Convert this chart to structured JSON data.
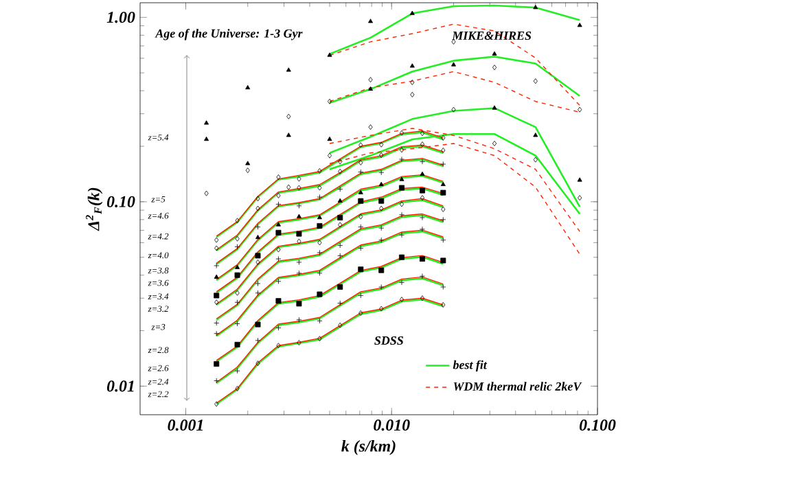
{
  "chart_data": {
    "type": "line",
    "log": "xy",
    "xlim": [
      0.0006,
      0.1
    ],
    "ylim": [
      0.007,
      1.2
    ],
    "xticks": [
      {
        "value": 0.001,
        "label": "0.001"
      },
      {
        "value": 0.01,
        "label": "0.010"
      },
      {
        "value": 0.1,
        "label": "0.100"
      }
    ],
    "yticks": [
      {
        "value": 0.01,
        "label": "0.01"
      },
      {
        "value": 0.1,
        "label": "0.10"
      },
      {
        "value": 1,
        "label": "1.00"
      }
    ],
    "xlabel": "k (s/km)",
    "ylabel": "Δ$^{2}$$_{F}$(k)",
    "legend": "bottom right",
    "annotations": [
      "Age of the Universe: 1-3 Gyr",
      "MIKE&HIRES",
      "SDSS",
      "z=5.4",
      "z=5",
      "z=4.6",
      "z=4.2",
      "z=4.0",
      "z=3.8",
      "z=3.6",
      "z=3.4",
      "z=3.2",
      "z=3",
      "z=2.8",
      "z=2.6",
      "z=2.4",
      "z=2.2"
    ],
    "series": [
      {
        "name": "best fit",
        "type": "line",
        "color": "#22ee22",
        "line_style": "solid",
        "x": [
          0.005,
          0.0079,
          0.0126,
          0.02,
          0.0316,
          0.05,
          0.082
        ],
        "values": [
          0.633,
          0.776,
          1.05,
          1.15,
          1.16,
          1.13,
          0.967
        ]
      },
      {
        "type": "line",
        "color": "#22ee22",
        "line_style": "solid",
        "x": [
          0.005,
          0.0079,
          0.0126,
          0.02,
          0.0316,
          0.05,
          0.082
        ],
        "values": [
          0.344,
          0.408,
          0.508,
          0.582,
          0.612,
          0.562,
          0.375
        ]
      },
      {
        "type": "line",
        "color": "#22ee22",
        "line_style": "solid",
        "x": [
          0.005,
          0.0079,
          0.0126,
          0.02,
          0.0316,
          0.05,
          0.082
        ],
        "values": [
          0.184,
          0.225,
          0.281,
          0.311,
          0.322,
          0.254,
          0.094
        ]
      },
      {
        "type": "line",
        "color": "#22ee22",
        "line_style": "solid",
        "x": [
          0.005,
          0.0079,
          0.0126,
          0.02,
          0.0316,
          0.05,
          0.082
        ],
        "values": [
          0.15,
          0.178,
          0.218,
          0.233,
          0.233,
          0.178,
          0.086
        ]
      },
      {
        "type": "line",
        "color": "#22ee22",
        "line_style": "solid",
        "x": [
          0.00141,
          0.00178,
          0.00224,
          0.00282,
          0.00355,
          0.00447,
          0.00562,
          0.00708,
          0.00891,
          0.0112,
          0.0141,
          0.0178
        ],
        "values": [
          0.0644,
          0.0774,
          0.106,
          0.132,
          0.137,
          0.144,
          0.169,
          0.198,
          0.208,
          0.232,
          0.238,
          0.218
        ]
      },
      {
        "type": "line",
        "color": "#22ee22",
        "line_style": "solid",
        "x": [
          0.00141,
          0.00178,
          0.00224,
          0.00282,
          0.00355,
          0.00447,
          0.00562,
          0.00708,
          0.00891,
          0.0112,
          0.0141,
          0.0178
        ],
        "values": [
          0.0543,
          0.0653,
          0.0895,
          0.112,
          0.116,
          0.122,
          0.142,
          0.167,
          0.175,
          0.196,
          0.2,
          0.184
        ]
      },
      {
        "type": "line",
        "color": "#22ee22",
        "line_style": "solid",
        "x": [
          0.00141,
          0.00178,
          0.00224,
          0.00282,
          0.00355,
          0.00447,
          0.00562,
          0.00708,
          0.00891,
          0.0112,
          0.0141,
          0.0178
        ],
        "values": [
          0.0459,
          0.0552,
          0.0756,
          0.0944,
          0.0979,
          0.103,
          0.12,
          0.141,
          0.148,
          0.166,
          0.169,
          0.156
        ]
      },
      {
        "type": "line",
        "color": "#22ee22",
        "line_style": "solid",
        "x": [
          0.00141,
          0.00178,
          0.00224,
          0.00282,
          0.00355,
          0.00447,
          0.00562,
          0.00708,
          0.00891,
          0.0112,
          0.0141,
          0.0178
        ],
        "values": [
          0.0375,
          0.0451,
          0.0618,
          0.0771,
          0.08,
          0.084,
          0.098,
          0.115,
          0.121,
          0.135,
          0.138,
          0.127
        ]
      },
      {
        "type": "line",
        "color": "#22ee22",
        "line_style": "solid",
        "x": [
          0.00141,
          0.00178,
          0.00224,
          0.00282,
          0.00355,
          0.00447,
          0.00562,
          0.00708,
          0.00891,
          0.0112,
          0.0141,
          0.0178
        ],
        "values": [
          0.0321,
          0.0386,
          0.0529,
          0.066,
          0.0685,
          0.0719,
          0.0842,
          0.0987,
          0.104,
          0.116,
          0.118,
          0.109
        ]
      },
      {
        "type": "line",
        "color": "#22ee22",
        "line_style": "solid",
        "x": [
          0.00141,
          0.00178,
          0.00224,
          0.00282,
          0.00355,
          0.00447,
          0.00562,
          0.00708,
          0.00891,
          0.0112,
          0.0141,
          0.0178
        ],
        "values": [
          0.0276,
          0.0332,
          0.0455,
          0.0567,
          0.0589,
          0.0618,
          0.0724,
          0.0849,
          0.0891,
          0.0995,
          0.102,
          0.0935
        ]
      },
      {
        "type": "line",
        "color": "#22ee22",
        "line_style": "solid",
        "x": [
          0.00141,
          0.00178,
          0.00224,
          0.00282,
          0.00355,
          0.00447,
          0.00562,
          0.00708,
          0.00891,
          0.0112,
          0.0141,
          0.0178
        ],
        "values": [
          0.0229,
          0.0275,
          0.0377,
          0.0471,
          0.0488,
          0.0513,
          0.0601,
          0.0704,
          0.0739,
          0.0826,
          0.0845,
          0.0776
        ]
      },
      {
        "type": "line",
        "color": "#22ee22",
        "line_style": "solid",
        "x": [
          0.00141,
          0.00178,
          0.00224,
          0.00282,
          0.00355,
          0.00447,
          0.00562,
          0.00708,
          0.00891,
          0.0112,
          0.0141,
          0.0178
        ],
        "values": [
          0.0187,
          0.0225,
          0.0308,
          0.0384,
          0.0399,
          0.0419,
          0.0491,
          0.0575,
          0.0604,
          0.0674,
          0.069,
          0.0634
        ]
      },
      {
        "type": "line",
        "color": "#22ee22",
        "line_style": "solid",
        "x": [
          0.00141,
          0.00178,
          0.00224,
          0.00282,
          0.00355,
          0.00447,
          0.00562,
          0.00708,
          0.00891,
          0.0112,
          0.0141,
          0.0178
        ],
        "values": [
          0.0136,
          0.0163,
          0.0224,
          0.028,
          0.029,
          0.0305,
          0.0357,
          0.0418,
          0.0439,
          0.049,
          0.0502,
          0.0461
        ]
      },
      {
        "type": "line",
        "color": "#22ee22",
        "line_style": "solid",
        "x": [
          0.00141,
          0.00178,
          0.00224,
          0.00282,
          0.00355,
          0.00447,
          0.00562,
          0.00708,
          0.00891,
          0.0112,
          0.0141,
          0.0178
        ],
        "values": [
          0.0104,
          0.0125,
          0.0171,
          0.0214,
          0.0222,
          0.0233,
          0.0273,
          0.032,
          0.0336,
          0.0375,
          0.0384,
          0.0352
        ]
      },
      {
        "type": "line",
        "color": "#22ee22",
        "line_style": "solid",
        "x": [
          0.00141,
          0.00178,
          0.00224,
          0.00282,
          0.00355,
          0.00447,
          0.00562,
          0.00708,
          0.00891,
          0.0112,
          0.0141,
          0.0178
        ],
        "values": [
          0.008,
          0.0096,
          0.0132,
          0.0164,
          0.0171,
          0.0179,
          0.021,
          0.0246,
          0.0258,
          0.0288,
          0.0295,
          0.0271
        ]
      },
      {
        "name": "WDM thermal relic 2keV",
        "type": "line",
        "color": "#ff2200",
        "line_style": "dashed",
        "x": [
          0.005,
          0.0079,
          0.0126,
          0.02,
          0.0316,
          0.05,
          0.082
        ],
        "values": [
          0.622,
          0.737,
          0.816,
          0.919,
          0.844,
          0.602,
          0.333
        ]
      },
      {
        "type": "line",
        "color": "#ff2200",
        "line_style": "dashed",
        "x": [
          0.005,
          0.0079,
          0.0126,
          0.02,
          0.0316,
          0.05,
          0.082
        ],
        "values": [
          0.35,
          0.415,
          0.451,
          0.508,
          0.444,
          0.35,
          0.306
        ]
      },
      {
        "type": "line",
        "color": "#ff2200",
        "line_style": "dashed",
        "x": [
          0.005,
          0.0079,
          0.0126,
          0.02,
          0.0316,
          0.05,
          0.082
        ],
        "values": [
          0.207,
          0.229,
          0.25,
          0.229,
          0.194,
          0.15,
          0.069
        ]
      },
      {
        "type": "line",
        "color": "#ff2200",
        "line_style": "dashed",
        "x": [
          0.005,
          0.0079,
          0.0126,
          0.02,
          0.0316,
          0.05,
          0.082
        ],
        "values": [
          0.161,
          0.184,
          0.194,
          0.207,
          0.178,
          0.12,
          0.052
        ]
      },
      {
        "type": "line",
        "color": "#ff2200",
        "line_style": "solid",
        "x": [
          0.00141,
          0.00178,
          0.00224,
          0.00282,
          0.00355,
          0.00447,
          0.00562,
          0.00708,
          0.00891,
          0.0112,
          0.0141,
          0.0178
        ],
        "values": [
          0.0651,
          0.0781,
          0.107,
          0.133,
          0.139,
          0.146,
          0.171,
          0.2,
          0.21,
          0.235,
          0.242,
          0.222
        ]
      },
      {
        "type": "line",
        "color": "#ff2200",
        "line_style": "solid",
        "x": [
          0.00141,
          0.00178,
          0.00224,
          0.00282,
          0.00355,
          0.00447,
          0.00562,
          0.00708,
          0.00891,
          0.0112,
          0.0141,
          0.0178
        ],
        "values": [
          0.0549,
          0.066,
          0.0905,
          0.113,
          0.118,
          0.124,
          0.144,
          0.169,
          0.178,
          0.199,
          0.203,
          0.187
        ]
      },
      {
        "type": "line",
        "color": "#ff2200",
        "line_style": "solid",
        "x": [
          0.00141,
          0.00178,
          0.00224,
          0.00282,
          0.00355,
          0.00447,
          0.00562,
          0.00708,
          0.00891,
          0.0112,
          0.0141,
          0.0178
        ],
        "values": [
          0.0464,
          0.0558,
          0.0764,
          0.0954,
          0.099,
          0.104,
          0.122,
          0.143,
          0.15,
          0.168,
          0.172,
          0.158
        ]
      },
      {
        "type": "line",
        "color": "#ff2200",
        "line_style": "solid",
        "x": [
          0.00141,
          0.00178,
          0.00224,
          0.00282,
          0.00355,
          0.00447,
          0.00562,
          0.00708,
          0.00891,
          0.0112,
          0.0141,
          0.0178
        ],
        "values": [
          0.0379,
          0.0456,
          0.0625,
          0.078,
          0.081,
          0.085,
          0.0995,
          0.117,
          0.123,
          0.137,
          0.14,
          0.129
        ]
      },
      {
        "type": "line",
        "color": "#ff2200",
        "line_style": "solid",
        "x": [
          0.00141,
          0.00178,
          0.00224,
          0.00282,
          0.00355,
          0.00447,
          0.00562,
          0.00708,
          0.00891,
          0.0112,
          0.0141,
          0.0178
        ],
        "values": [
          0.0325,
          0.039,
          0.0535,
          0.0668,
          0.0693,
          0.0728,
          0.0853,
          0.1,
          0.106,
          0.118,
          0.12,
          0.111
        ]
      },
      {
        "type": "line",
        "color": "#ff2200",
        "line_style": "solid",
        "x": [
          0.00141,
          0.00178,
          0.00224,
          0.00282,
          0.00355,
          0.00447,
          0.00562,
          0.00708,
          0.00891,
          0.0112,
          0.0141,
          0.0178
        ],
        "values": [
          0.0279,
          0.0336,
          0.046,
          0.0574,
          0.0596,
          0.0626,
          0.0734,
          0.0861,
          0.0904,
          0.101,
          0.104,
          0.095
        ]
      },
      {
        "type": "line",
        "color": "#ff2200",
        "line_style": "solid",
        "x": [
          0.00141,
          0.00178,
          0.00224,
          0.00282,
          0.00355,
          0.00447,
          0.00562,
          0.00708,
          0.00891,
          0.0112,
          0.0141,
          0.0178
        ],
        "values": [
          0.0232,
          0.0278,
          0.0381,
          0.0477,
          0.0494,
          0.052,
          0.0609,
          0.0714,
          0.075,
          0.0839,
          0.0859,
          0.0789
        ]
      },
      {
        "type": "line",
        "color": "#ff2200",
        "line_style": "solid",
        "x": [
          0.00141,
          0.00178,
          0.00224,
          0.00282,
          0.00355,
          0.00447,
          0.00562,
          0.00708,
          0.00891,
          0.0112,
          0.0141,
          0.0178
        ],
        "values": [
          0.0189,
          0.0228,
          0.0312,
          0.0389,
          0.0404,
          0.0425,
          0.0498,
          0.0583,
          0.0613,
          0.0685,
          0.0702,
          0.0645
        ]
      },
      {
        "type": "line",
        "color": "#ff2200",
        "line_style": "solid",
        "x": [
          0.00141,
          0.00178,
          0.00224,
          0.00282,
          0.00355,
          0.00447,
          0.00562,
          0.00708,
          0.00891,
          0.0112,
          0.0141,
          0.0178
        ],
        "values": [
          0.0138,
          0.0165,
          0.0227,
          0.0284,
          0.0294,
          0.031,
          0.0362,
          0.0424,
          0.0446,
          0.0498,
          0.0511,
          0.0469
        ]
      },
      {
        "type": "line",
        "color": "#ff2200",
        "line_style": "solid",
        "x": [
          0.00141,
          0.00178,
          0.00224,
          0.00282,
          0.00355,
          0.00447,
          0.00562,
          0.00708,
          0.00891,
          0.0112,
          0.0141,
          0.0178
        ],
        "values": [
          0.0105,
          0.0127,
          0.0173,
          0.0217,
          0.0225,
          0.0236,
          0.0277,
          0.0325,
          0.0341,
          0.0381,
          0.0391,
          0.0358
        ]
      },
      {
        "type": "line",
        "color": "#ff2200",
        "line_style": "solid",
        "x": [
          0.00141,
          0.00178,
          0.00224,
          0.00282,
          0.00355,
          0.00447,
          0.00562,
          0.00708,
          0.00891,
          0.0112,
          0.0141,
          0.0178
        ],
        "values": [
          0.0081,
          0.0097,
          0.0134,
          0.0166,
          0.0173,
          0.0182,
          0.0213,
          0.025,
          0.0262,
          0.0293,
          0.03,
          0.0276
        ]
      },
      {
        "type": "scatter",
        "color": "#000000",
        "marker": "triangle",
        "x": [
          0.00126,
          0.002,
          0.00316,
          0.005,
          0.0079,
          0.0126,
          0.02,
          0.0316,
          0.05,
          0.082
        ],
        "values": [
          0.267,
          0.415,
          0.517,
          0.623,
          0.95,
          1.05,
          null,
          0.633,
          1.13,
          0.904
        ]
      },
      {
        "type": "scatter",
        "color": "#000000",
        "marker": "diamond",
        "x": [
          0.00126,
          0.002,
          0.00316,
          0.005,
          0.0079,
          0.0126,
          0.02,
          0.0316,
          0.05,
          0.082
        ],
        "values": [
          0.111,
          0.148,
          0.29,
          0.35,
          0.459,
          0.444,
          0.737,
          0.535,
          0.451,
          0.316
        ]
      },
      {
        "type": "scatter",
        "color": "#000000",
        "marker": "triangle",
        "x": [
          0.00126,
          0.002,
          0.00316,
          0.005,
          0.0079,
          0.0126,
          0.02,
          0.0316,
          0.05,
          0.082
        ],
        "values": [
          0.218,
          0.161,
          0.229,
          0.218,
          0.408,
          0.544,
          0.553,
          0.322,
          0.229,
          0.131
        ]
      },
      {
        "type": "scatter",
        "color": "#000000",
        "marker": "diamond",
        "x": [
          0.00316,
          0.005,
          0.0079,
          0.0126,
          0.02,
          0.0316,
          0.05,
          0.082
        ],
        "values": [
          0.12,
          0.178,
          0.254,
          0.381,
          0.316,
          0.207,
          0.169,
          0.105
        ]
      },
      {
        "type": "scatter",
        "color": "#000000",
        "marker": "diamond",
        "x": [
          0.00141,
          0.00178,
          0.00224,
          0.00282,
          0.00355,
          0.00447,
          0.00562,
          0.00708,
          0.00891,
          0.0112,
          0.0141,
          0.0178
        ],
        "values": [
          0.062,
          0.079,
          0.104,
          0.136,
          0.133,
          0.147,
          0.165,
          0.203,
          0.204,
          0.236,
          0.235,
          0.222
        ]
      },
      {
        "type": "scatter",
        "color": "#000000",
        "marker": "diamond",
        "x": [
          0.00141,
          0.00178,
          0.00224,
          0.00282,
          0.00355,
          0.00447,
          0.00562,
          0.00708,
          0.00891,
          0.0112,
          0.0141,
          0.0178
        ],
        "values": [
          0.056,
          0.063,
          0.092,
          0.108,
          0.119,
          0.119,
          0.146,
          0.163,
          0.179,
          0.191,
          0.205,
          0.19
        ]
      },
      {
        "type": "scatter",
        "color": "#000000",
        "marker": "cross",
        "x": [
          0.00141,
          0.00178,
          0.00224,
          0.00282,
          0.00355,
          0.00447,
          0.00562,
          0.00708,
          0.00891,
          0.0112,
          0.0141,
          0.0178
        ],
        "values": [
          0.045,
          0.057,
          0.073,
          0.097,
          0.095,
          0.106,
          0.117,
          0.145,
          0.144,
          0.17,
          0.165,
          0.16
        ]
      },
      {
        "type": "scatter",
        "color": "#000000",
        "marker": "triangle",
        "x": [
          0.00141,
          0.00178,
          0.00224,
          0.00282,
          0.00355,
          0.00447,
          0.00562,
          0.00708,
          0.00891,
          0.0112,
          0.0141,
          0.0178
        ],
        "values": [
          0.039,
          0.044,
          0.064,
          0.075,
          0.083,
          0.082,
          0.101,
          0.112,
          0.124,
          0.132,
          0.141,
          0.124
        ]
      },
      {
        "type": "scatter",
        "color": "#000000",
        "marker": "square",
        "x": [
          0.00141,
          0.00178,
          0.00224,
          0.00282,
          0.00355,
          0.00447,
          0.00562,
          0.00708,
          0.00891,
          0.0112,
          0.0141,
          0.0178
        ],
        "values": [
          0.031,
          0.04,
          0.051,
          0.068,
          0.067,
          0.074,
          0.082,
          0.101,
          0.101,
          0.119,
          0.115,
          0.112
        ]
      },
      {
        "type": "scatter",
        "color": "#000000",
        "marker": "diamond",
        "x": [
          0.00141,
          0.00178,
          0.00224,
          0.00282,
          0.00355,
          0.00447,
          0.00562,
          0.00708,
          0.00891,
          0.0112,
          0.0141,
          0.0178
        ],
        "values": [
          0.0285,
          0.032,
          0.047,
          0.055,
          0.061,
          0.06,
          0.075,
          0.083,
          0.092,
          0.097,
          0.105,
          0.091
        ]
      },
      {
        "type": "scatter",
        "color": "#000000",
        "marker": "cross",
        "x": [
          0.00141,
          0.00178,
          0.00224,
          0.00282,
          0.00355,
          0.00447,
          0.00562,
          0.00708,
          0.00891,
          0.0112,
          0.0141,
          0.0178
        ],
        "values": [
          0.022,
          0.0285,
          0.036,
          0.049,
          0.047,
          0.053,
          0.058,
          0.073,
          0.072,
          0.085,
          0.082,
          0.08
        ]
      },
      {
        "type": "scatter",
        "color": "#000000",
        "marker": "cross",
        "x": [
          0.00141,
          0.00178,
          0.00224,
          0.00282,
          0.00355,
          0.00447,
          0.00562,
          0.00708,
          0.00891,
          0.0112,
          0.0141,
          0.0178
        ],
        "values": [
          0.0193,
          0.0218,
          0.032,
          0.037,
          0.041,
          0.041,
          0.051,
          0.056,
          0.062,
          0.066,
          0.071,
          0.062
        ]
      },
      {
        "type": "scatter",
        "color": "#000000",
        "marker": "square",
        "x": [
          0.00141,
          0.00178,
          0.00224,
          0.00282,
          0.00355,
          0.00447,
          0.00562,
          0.00708,
          0.00891,
          0.0112,
          0.0141,
          0.0178
        ],
        "values": [
          0.0132,
          0.0168,
          0.0216,
          0.029,
          0.028,
          0.0315,
          0.0345,
          0.043,
          0.0425,
          0.05,
          0.049,
          0.048
        ]
      },
      {
        "type": "scatter",
        "color": "#000000",
        "marker": "cross",
        "x": [
          0.00141,
          0.00178,
          0.00224,
          0.00282,
          0.00355,
          0.00447,
          0.00562,
          0.00708,
          0.00891,
          0.0112,
          0.0141,
          0.0178
        ],
        "values": [
          0.0107,
          0.0121,
          0.0177,
          0.0207,
          0.0229,
          0.0226,
          0.0282,
          0.031,
          0.0345,
          0.0365,
          0.0395,
          0.0345
        ]
      },
      {
        "type": "scatter",
        "color": "#000000",
        "marker": "diamond",
        "x": [
          0.00141,
          0.00178,
          0.00224,
          0.00282,
          0.00355,
          0.00447,
          0.00562,
          0.00708,
          0.00891,
          0.0112,
          0.0141,
          0.0178
        ],
        "values": [
          0.008,
          0.0097,
          0.0133,
          0.0166,
          0.0172,
          0.0181,
          0.0214,
          0.0249,
          0.0263,
          0.0295,
          0.03,
          0.0276
        ]
      }
    ]
  }
}
